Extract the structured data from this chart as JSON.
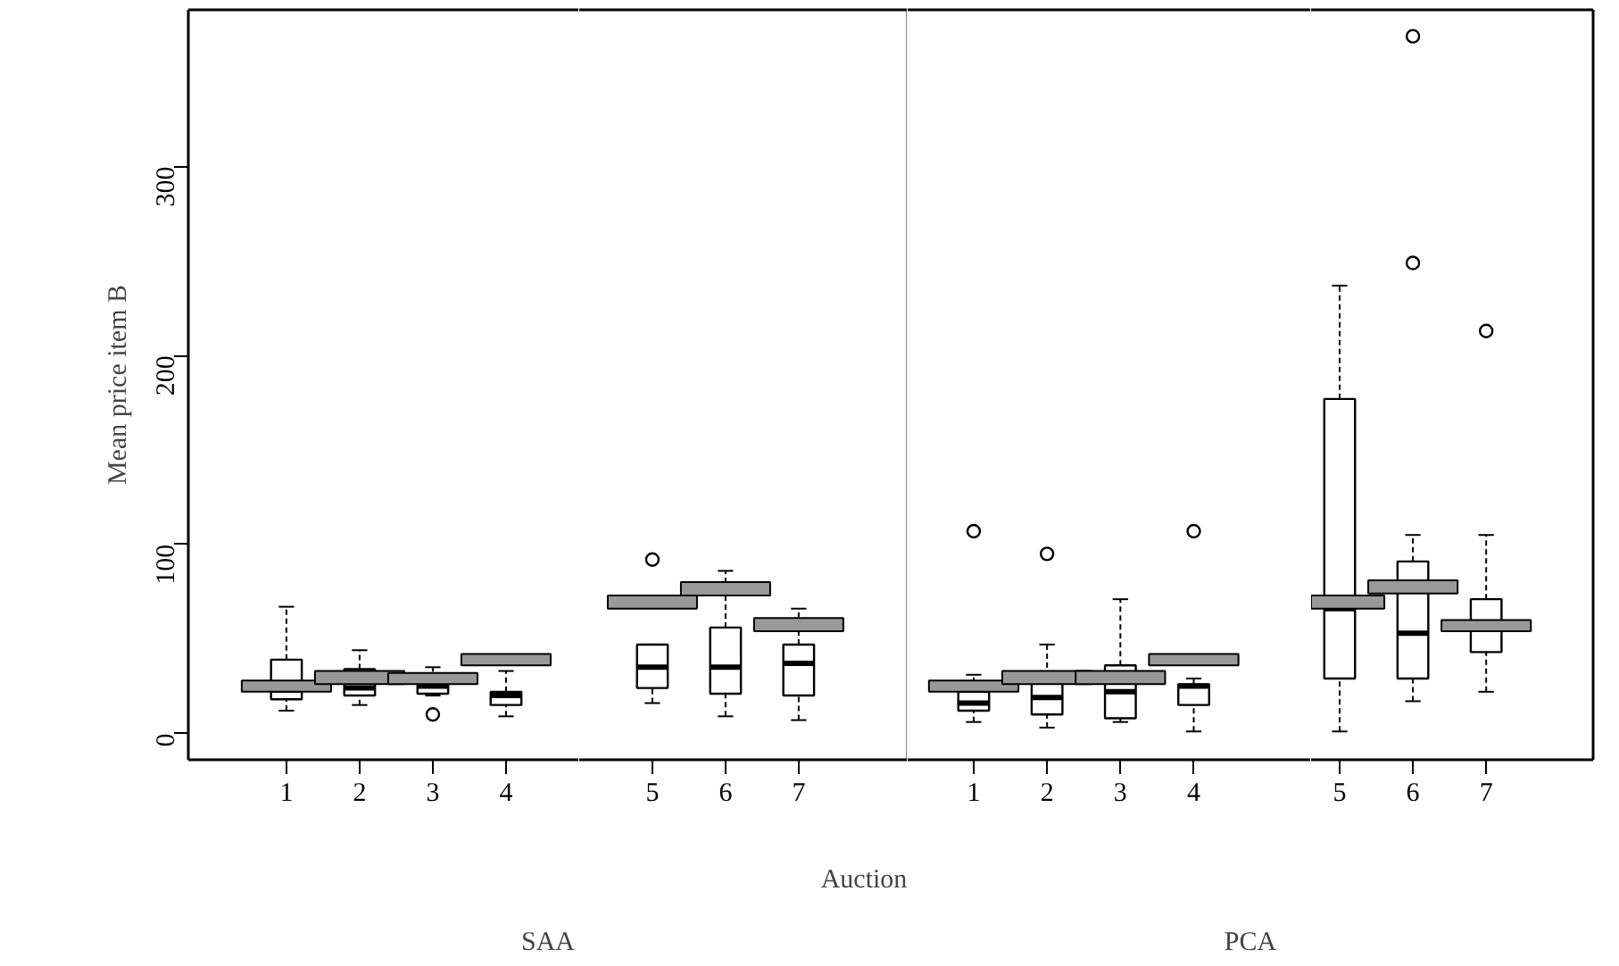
{
  "chart_data": [
    {
      "type": "box",
      "ylabel": "Mean price item B",
      "annotations": [
        "SAA"
      ],
      "categories": [
        "1",
        "2",
        "3",
        "4"
      ],
      "ylim": [
        -14,
        383
      ],
      "yticks": [
        0,
        100,
        200,
        300
      ],
      "grid": false,
      "series": [
        {
          "color": "#ffffff",
          "boxes": [
            {
              "low": 12,
              "q1": 18,
              "median": 23,
              "q3": 39,
              "high": 67
            },
            {
              "low": 15,
              "q1": 20,
              "median": 24,
              "q3": 34,
              "high": 44
            },
            {
              "low": 20,
              "q1": 21,
              "median": 25,
              "q3": 28,
              "high": 35,
              "outliers": [
                10
              ]
            },
            {
              "low": 9,
              "q1": 15,
              "median": 20,
              "q3": 22,
              "high": 33
            }
          ]
        },
        {
          "type": "bar",
          "color": "#999999",
          "base": [
            22,
            26,
            26,
            36
          ],
          "values": [
            6,
            7,
            6,
            6
          ]
        }
      ]
    },
    {
      "type": "box",
      "xlabel": "Auction",
      "categories": [
        "5",
        "6",
        "7"
      ],
      "ylim": [
        -14,
        383
      ],
      "yticks": [
        0,
        100,
        200,
        300
      ],
      "grid": false,
      "tick_labels": "x",
      "series": [
        {
          "color": "#ffffff",
          "boxes": [
            {
              "low": 16,
              "q1": 24,
              "median": 35,
              "q3": 47,
              "high": 47,
              "outliers": [
                92
              ]
            },
            {
              "low": 9,
              "q1": 21,
              "median": 35,
              "q3": 56,
              "high": 86
            },
            {
              "low": 7,
              "q1": 20,
              "median": 37,
              "q3": 47,
              "high": 66
            }
          ]
        },
        {
          "type": "bar",
          "color": "#999999",
          "base": [
            66,
            73,
            54
          ],
          "values": [
            7,
            7,
            7
          ]
        }
      ]
    },
    {
      "type": "box",
      "annotations": [
        "PCA"
      ],
      "categories": [
        "1",
        "2",
        "3",
        "4"
      ],
      "ylim": [
        -14,
        383
      ],
      "yticks": [
        0,
        100,
        200,
        300
      ],
      "grid": false,
      "tick_labels": "x",
      "series": [
        {
          "color": "#ffffff",
          "boxes": [
            {
              "low": 6,
              "q1": 12,
              "median": 16,
              "q3": 22,
              "high": 31,
              "outliers": [
                107
              ]
            },
            {
              "low": 3,
              "q1": 10,
              "median": 19,
              "q3": 30,
              "high": 47,
              "outliers": [
                95
              ]
            },
            {
              "low": 6,
              "q1": 8,
              "median": 22,
              "q3": 36,
              "high": 71
            },
            {
              "low": 1,
              "q1": 15,
              "median": 25,
              "q3": 26,
              "high": 29,
              "outliers": [
                107
              ]
            }
          ]
        },
        {
          "type": "bar",
          "color": "#999999",
          "base": [
            22,
            26,
            26,
            36
          ],
          "values": [
            6,
            7,
            7,
            6
          ]
        }
      ]
    },
    {
      "type": "box",
      "categories": [
        "5",
        "6",
        "7"
      ],
      "ylim": [
        -14,
        383
      ],
      "yticks": [
        0,
        100,
        200,
        300
      ],
      "grid": false,
      "tick_labels": "x",
      "series": [
        {
          "color": "#ffffff",
          "boxes": [
            {
              "low": 1,
              "q1": 29,
              "median": 66,
              "q3": 177,
              "high": 237
            },
            {
              "low": 17,
              "q1": 29,
              "median": 53,
              "q3": 91,
              "high": 105,
              "outliers": [
                249,
                369
              ]
            },
            {
              "low": 22,
              "q1": 43,
              "median": 56,
              "q3": 71,
              "high": 105,
              "outliers": [
                213
              ]
            }
          ]
        },
        {
          "type": "bar",
          "color": "#999999",
          "base": [
            66,
            74,
            54
          ],
          "values": [
            7,
            7,
            6
          ]
        }
      ]
    }
  ]
}
